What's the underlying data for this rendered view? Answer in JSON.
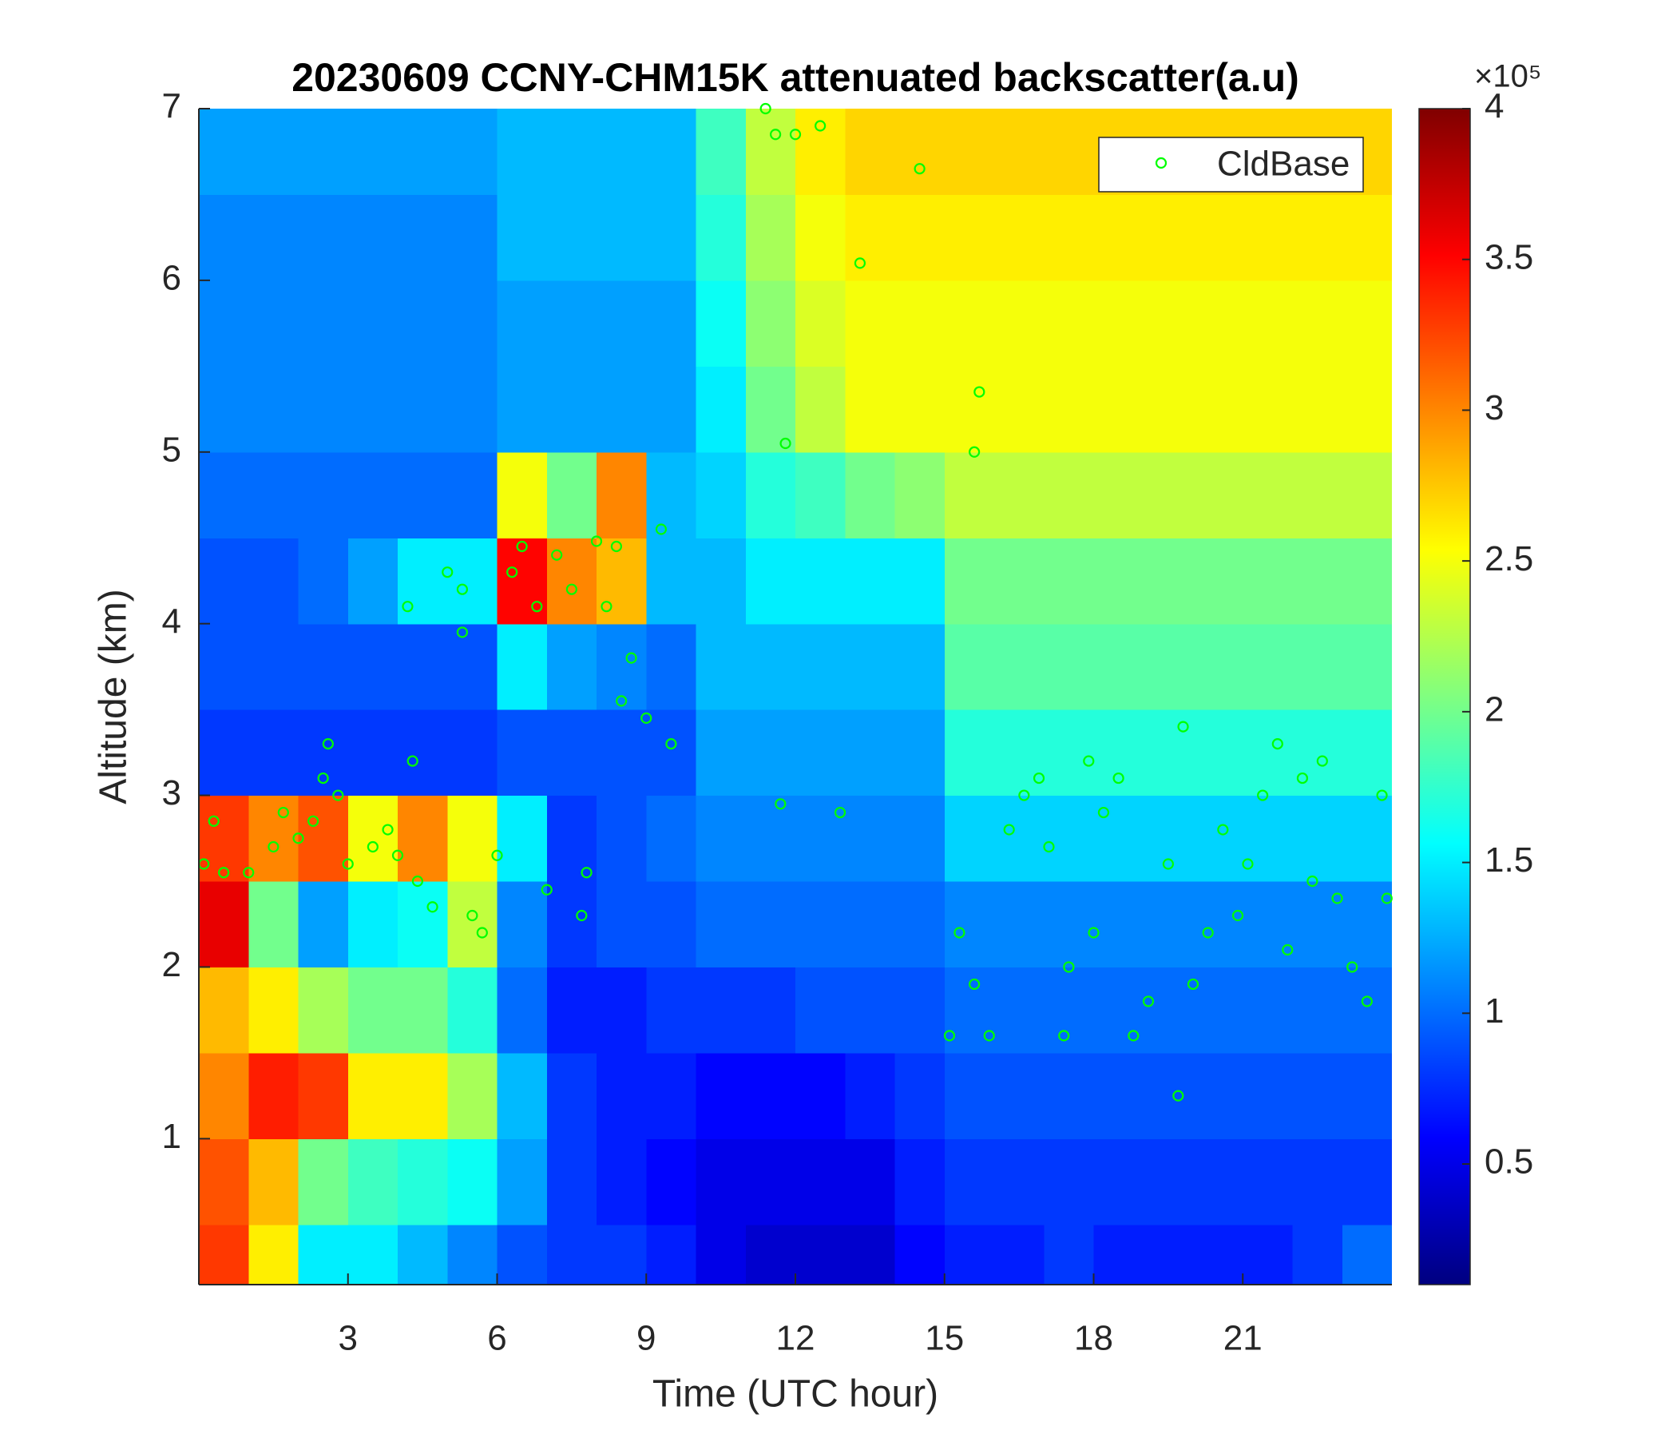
{
  "chart_data": {
    "type": "heatmap",
    "title": "20230609 CCNY-CHM15K attenuated backscatter(a.u)",
    "xlabel": "Time (UTC hour)",
    "ylabel": "Altitude (km)",
    "xlim": [
      0,
      24
    ],
    "xticks": [
      3,
      6,
      9,
      12,
      15,
      18,
      21
    ],
    "ylim": [
      0.15,
      7
    ],
    "yticks": [
      1,
      2,
      3,
      4,
      5,
      6,
      7
    ],
    "colormap": "jet",
    "zlim": [
      10000,
      400000
    ],
    "zticks": [
      {
        "value": 50000,
        "label": "0.5"
      },
      {
        "value": 100000,
        "label": "1"
      },
      {
        "value": 150000,
        "label": "1.5"
      },
      {
        "value": 200000,
        "label": "2"
      },
      {
        "value": 250000,
        "label": "2.5"
      },
      {
        "value": 300000,
        "label": "3"
      },
      {
        "value": 350000,
        "label": "3.5"
      },
      {
        "value": 400000,
        "label": "4"
      }
    ],
    "colorbar_scale": "×10⁵",
    "x_bins": [
      0,
      1,
      2,
      3,
      4,
      5,
      6,
      7,
      8,
      9,
      10,
      11,
      12,
      13,
      14,
      15,
      16,
      17,
      18,
      19,
      20,
      21,
      22,
      23,
      24
    ],
    "y_bins": [
      0.15,
      0.5,
      1,
      1.5,
      2,
      2.5,
      3,
      3.5,
      4,
      4.5,
      5,
      5.5,
      6,
      6.5,
      7
    ],
    "z": [
      [
        330000,
        260000,
        150000,
        150000,
        130000,
        110000,
        90000,
        80000,
        80000,
        70000,
        50000,
        40000,
        40000,
        40000,
        60000,
        70000,
        70000,
        80000,
        70000,
        70000,
        70000,
        70000,
        80000,
        100000
      ],
      [
        320000,
        280000,
        200000,
        180000,
        170000,
        160000,
        120000,
        80000,
        70000,
        60000,
        50000,
        50000,
        50000,
        50000,
        70000,
        80000,
        80000,
        80000,
        80000,
        80000,
        80000,
        80000,
        80000,
        80000
      ],
      [
        300000,
        340000,
        330000,
        260000,
        260000,
        220000,
        130000,
        80000,
        70000,
        70000,
        60000,
        60000,
        60000,
        70000,
        80000,
        90000,
        90000,
        90000,
        90000,
        90000,
        90000,
        90000,
        90000,
        90000
      ],
      [
        280000,
        260000,
        220000,
        200000,
        200000,
        170000,
        100000,
        70000,
        70000,
        80000,
        80000,
        80000,
        90000,
        90000,
        90000,
        100000,
        100000,
        100000,
        100000,
        100000,
        100000,
        100000,
        100000,
        100000
      ],
      [
        360000,
        200000,
        120000,
        150000,
        160000,
        230000,
        110000,
        80000,
        90000,
        90000,
        100000,
        100000,
        100000,
        100000,
        100000,
        110000,
        110000,
        110000,
        110000,
        110000,
        110000,
        110000,
        110000,
        110000
      ],
      [
        330000,
        300000,
        320000,
        250000,
        300000,
        250000,
        150000,
        80000,
        90000,
        100000,
        110000,
        110000,
        110000,
        110000,
        110000,
        140000,
        140000,
        140000,
        140000,
        140000,
        140000,
        140000,
        140000,
        140000
      ],
      [
        80000,
        80000,
        80000,
        80000,
        80000,
        80000,
        90000,
        90000,
        90000,
        90000,
        120000,
        120000,
        120000,
        120000,
        120000,
        170000,
        170000,
        170000,
        170000,
        170000,
        170000,
        170000,
        170000,
        170000
      ],
      [
        90000,
        90000,
        90000,
        90000,
        90000,
        90000,
        150000,
        120000,
        110000,
        100000,
        130000,
        130000,
        130000,
        130000,
        130000,
        190000,
        190000,
        190000,
        190000,
        190000,
        190000,
        190000,
        190000,
        190000
      ],
      [
        90000,
        90000,
        100000,
        120000,
        150000,
        150000,
        350000,
        300000,
        280000,
        130000,
        130000,
        150000,
        150000,
        150000,
        150000,
        200000,
        200000,
        200000,
        200000,
        200000,
        200000,
        200000,
        200000,
        200000
      ],
      [
        100000,
        100000,
        100000,
        100000,
        100000,
        100000,
        250000,
        200000,
        300000,
        130000,
        140000,
        170000,
        180000,
        200000,
        210000,
        230000,
        230000,
        230000,
        230000,
        230000,
        230000,
        230000,
        230000,
        230000
      ],
      [
        110000,
        110000,
        110000,
        110000,
        110000,
        110000,
        120000,
        120000,
        120000,
        120000,
        150000,
        200000,
        230000,
        250000,
        250000,
        250000,
        250000,
        250000,
        250000,
        250000,
        250000,
        250000,
        250000,
        250000
      ],
      [
        110000,
        110000,
        110000,
        110000,
        110000,
        110000,
        120000,
        120000,
        120000,
        120000,
        160000,
        210000,
        240000,
        250000,
        250000,
        250000,
        250000,
        250000,
        250000,
        250000,
        250000,
        250000,
        250000,
        250000
      ],
      [
        110000,
        110000,
        110000,
        110000,
        110000,
        110000,
        130000,
        130000,
        130000,
        130000,
        170000,
        220000,
        250000,
        260000,
        260000,
        260000,
        260000,
        260000,
        260000,
        260000,
        260000,
        260000,
        260000,
        260000
      ],
      [
        120000,
        120000,
        120000,
        120000,
        120000,
        120000,
        130000,
        130000,
        130000,
        130000,
        180000,
        230000,
        260000,
        270000,
        270000,
        270000,
        270000,
        270000,
        270000,
        270000,
        270000,
        270000,
        270000,
        270000
      ]
    ],
    "legend": "upper right",
    "series": [
      {
        "name": "CldBase",
        "color": "#00ff00",
        "marker": "open-circle",
        "x": [
          0.1,
          0.3,
          0.5,
          1,
          1.5,
          1.7,
          2,
          2.3,
          2.5,
          2.6,
          2.8,
          3,
          3.5,
          3.8,
          4,
          4.2,
          4.3,
          4.4,
          4.7,
          5,
          5.3,
          5.3,
          5.5,
          5.7,
          6,
          6.3,
          6.5,
          6.8,
          7,
          7.2,
          7.5,
          7.8,
          7.7,
          8,
          8.2,
          8.4,
          8.5,
          8.7,
          9,
          9.3,
          9.5,
          11.4,
          11.6,
          11.8,
          12,
          12.5,
          13.3,
          14.5,
          11.7,
          12.9,
          15.1,
          15.3,
          15.6,
          15.6,
          15.7,
          15.9,
          16.3,
          16.6,
          16.9,
          17.1,
          17.4,
          17.5,
          17.9,
          18,
          18.2,
          18.5,
          18.8,
          19.1,
          19.5,
          19.7,
          19.8,
          20,
          20.3,
          20.6,
          20.9,
          21.1,
          21.4,
          21.7,
          21.9,
          22.2,
          22.4,
          22.6,
          22.9,
          23.2,
          23.5,
          23.8,
          23.9
        ],
        "values": [
          2.6,
          2.85,
          2.55,
          2.55,
          2.7,
          2.9,
          2.75,
          2.85,
          3.1,
          3.3,
          3,
          2.6,
          2.7,
          2.8,
          2.65,
          4.1,
          3.2,
          2.5,
          2.35,
          4.3,
          4.2,
          3.95,
          2.3,
          2.2,
          2.65,
          4.3,
          4.45,
          4.1,
          2.45,
          4.4,
          4.2,
          2.55,
          2.3,
          4.48,
          4.1,
          4.45,
          3.55,
          3.8,
          3.45,
          4.55,
          3.3,
          7,
          6.85,
          5.05,
          6.85,
          6.9,
          6.1,
          6.65,
          2.95,
          2.9,
          1.6,
          2.2,
          1.9,
          5,
          5.35,
          1.6,
          2.8,
          3,
          3.1,
          2.7,
          1.6,
          2,
          3.2,
          2.2,
          2.9,
          3.1,
          1.6,
          1.8,
          2.6,
          1.25,
          3.4,
          1.9,
          2.2,
          2.8,
          2.3,
          2.6,
          3,
          3.3,
          2.1,
          3.1,
          2.5,
          3.2,
          2.4,
          2,
          1.8,
          3,
          2.4
        ]
      }
    ]
  }
}
